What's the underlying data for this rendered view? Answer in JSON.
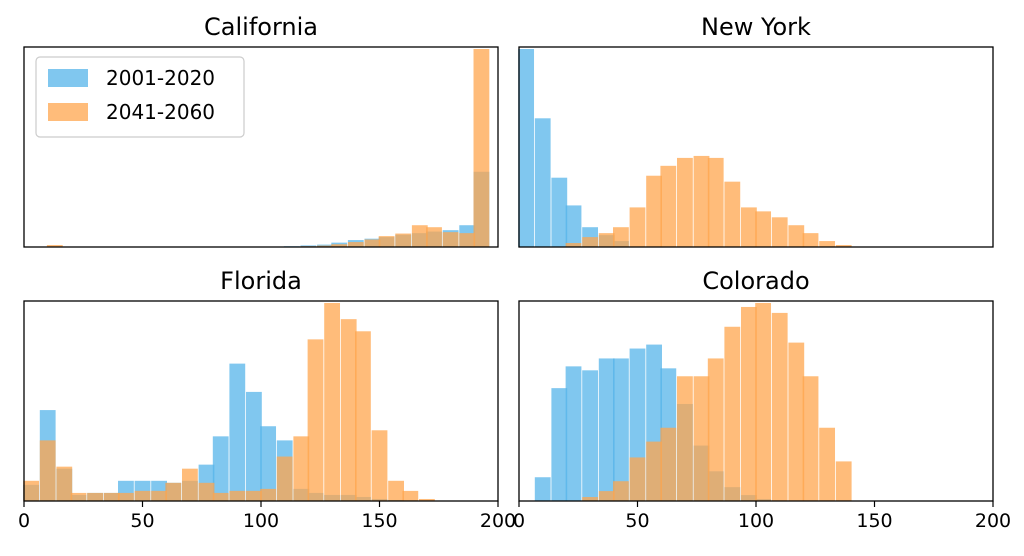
{
  "colors": {
    "series_a": "#56B4E9",
    "series_b": "#FFA64D",
    "bar_alpha": 0.75
  },
  "legend": {
    "placement": "top-left",
    "panel": 0
  },
  "chart_data": [
    {
      "type": "bar",
      "title": "California",
      "xlim": [
        0,
        200
      ],
      "show_x_ticks": false,
      "bin_width": 6.67,
      "series": [
        {
          "name": "2001-2020",
          "x": [
            60,
            67,
            73,
            80,
            87,
            93,
            100,
            107,
            113,
            120,
            127,
            133,
            140,
            147,
            153,
            160,
            167,
            173,
            180,
            187,
            193
          ],
          "values": [
            0.1,
            0.1,
            0.1,
            0.1,
            0.1,
            0.1,
            0.2,
            0.2,
            0.4,
            0.8,
            1.2,
            2.2,
            3.5,
            4.2,
            5.0,
            6.2,
            7.0,
            7.8,
            8.5,
            11,
            38
          ]
        },
        {
          "name": "2041-2060",
          "x": [
            13,
            60,
            67,
            73,
            80,
            87,
            93,
            100,
            107,
            113,
            120,
            127,
            133,
            140,
            147,
            153,
            160,
            167,
            173,
            180,
            187,
            193
          ],
          "values": [
            1.0,
            0.1,
            0.1,
            0.1,
            0.1,
            0.1,
            0.1,
            0.1,
            0.1,
            0.2,
            0.4,
            0.7,
            1.4,
            2.5,
            3.8,
            5.5,
            6.8,
            11,
            10,
            7.5,
            7,
            100
          ]
        }
      ]
    },
    {
      "type": "bar",
      "title": "New York",
      "xlim": [
        0,
        200
      ],
      "show_x_ticks": false,
      "bin_width": 6.67,
      "series": [
        {
          "name": "2001-2020",
          "x": [
            3,
            10,
            17,
            23,
            30,
            37,
            43
          ],
          "values": [
            100,
            65,
            35,
            21,
            10,
            6,
            3
          ]
        },
        {
          "name": "2041-2060",
          "x": [
            23,
            30,
            37,
            43,
            50,
            57,
            63,
            70,
            77,
            83,
            90,
            97,
            103,
            110,
            117,
            123,
            130,
            137
          ],
          "values": [
            2,
            5,
            7,
            10,
            20,
            36,
            41,
            45,
            46,
            45,
            33,
            20,
            18,
            15,
            11,
            7,
            3,
            1
          ]
        }
      ]
    },
    {
      "type": "bar",
      "title": "Florida",
      "xlim": [
        0,
        200
      ],
      "show_x_ticks": true,
      "x_ticks": [
        0,
        50,
        100,
        150,
        200
      ],
      "bin_width": 6.67,
      "series": [
        {
          "name": "2001-2020",
          "x": [
            3,
            10,
            17,
            23,
            30,
            37,
            43,
            50,
            57,
            63,
            70,
            77,
            83,
            90,
            97,
            103,
            110,
            117,
            123,
            130,
            137,
            143,
            150,
            157,
            163
          ],
          "values": [
            8,
            45,
            16,
            3,
            4,
            4,
            10,
            10,
            10,
            9,
            10,
            18,
            32,
            68,
            54,
            37,
            30,
            6,
            4,
            3,
            3,
            2,
            1,
            0.5,
            0.3
          ]
        },
        {
          "name": "2041-2060",
          "x": [
            3,
            10,
            17,
            23,
            30,
            37,
            43,
            50,
            57,
            63,
            70,
            77,
            83,
            90,
            97,
            103,
            110,
            117,
            123,
            130,
            137,
            143,
            150,
            157,
            163,
            170
          ],
          "values": [
            10,
            30,
            17,
            4,
            4,
            4,
            4,
            5,
            5,
            9,
            16,
            9,
            4,
            5,
            5,
            6,
            22,
            32,
            80,
            98,
            90,
            84,
            35,
            10,
            5,
            1
          ]
        }
      ]
    },
    {
      "type": "bar",
      "title": "Colorado",
      "xlim": [
        0,
        200
      ],
      "show_x_ticks": true,
      "x_ticks": [
        0,
        50,
        100,
        150,
        200
      ],
      "bin_width": 6.67,
      "series": [
        {
          "name": "2001-2020",
          "x": [
            10,
            17,
            23,
            30,
            37,
            43,
            50,
            57,
            63,
            70,
            77,
            83,
            90,
            97,
            103
          ],
          "values": [
            12,
            57,
            68,
            66,
            72,
            72,
            77,
            79,
            67,
            49,
            28,
            15,
            7,
            3,
            1
          ]
        },
        {
          "name": "2041-2060",
          "x": [
            30,
            37,
            43,
            50,
            57,
            63,
            70,
            77,
            83,
            90,
            97,
            103,
            110,
            117,
            123,
            130,
            137
          ],
          "values": [
            2,
            5,
            10,
            22,
            30,
            37,
            63,
            63,
            72,
            88,
            98,
            100,
            95,
            80,
            63,
            37,
            20
          ]
        }
      ]
    }
  ]
}
